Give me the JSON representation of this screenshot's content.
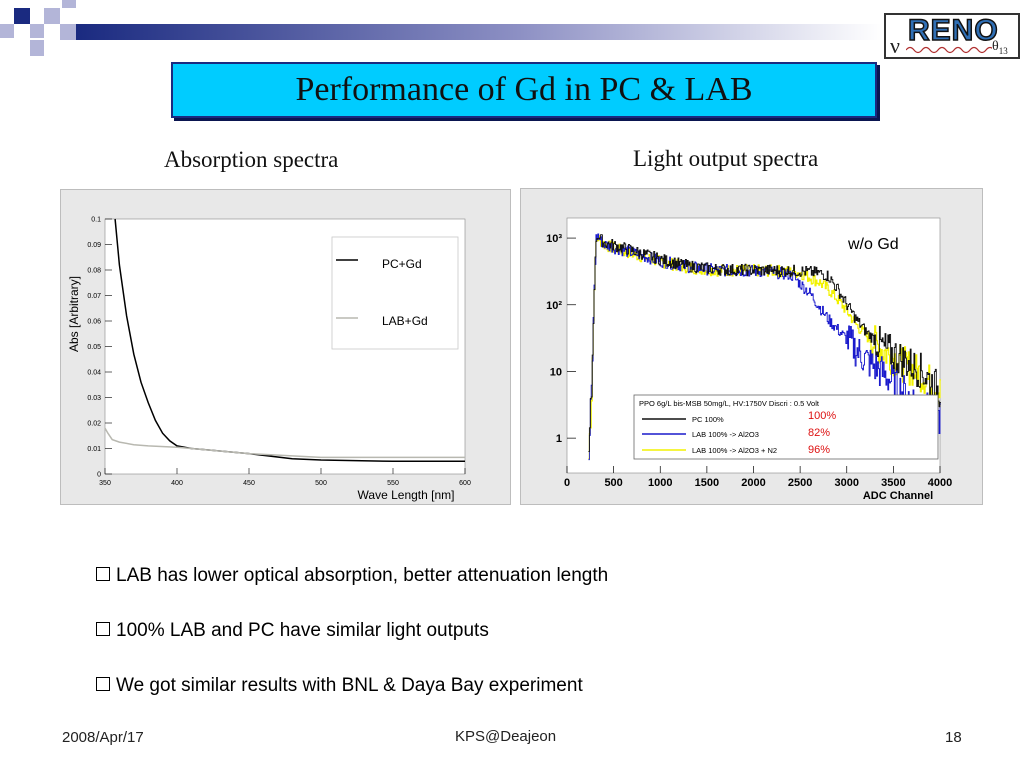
{
  "slide": {
    "title": "Performance of Gd in PC & LAB",
    "left_subtitle": "Absorption spectra",
    "right_subtitle": "Light output spectra",
    "bullets": [
      "LAB has lower optical absorption, better attenuation length",
      "100% LAB and PC have similar light outputs",
      "We got similar results with BNL & Daya Bay experiment"
    ],
    "footer": {
      "date": "2008/Apr/17",
      "center": "KPS@Deajeon",
      "page": "18"
    },
    "logo": {
      "text": "RENO",
      "nu": "ν",
      "theta": "θ",
      "theta_sub": "13"
    }
  },
  "colors": {
    "title_bg": "#00ccff",
    "title_border": "#1a2a80",
    "corner_navy": "#1a2a80",
    "corner_lavender": "#b3b5d8",
    "pc_line": "#000000",
    "lab_line": "#b8b8b0",
    "pc_hist": "#111111",
    "lab_al2o3_hist": "#1a1acc",
    "lab_al2o3_n2_hist": "#f2f200",
    "percent_text": "#dd1111"
  },
  "chart_data": [
    {
      "type": "line",
      "xlabel": "Wave Length [nm]",
      "ylabel": "Abs [Arbitrary]",
      "xlim": [
        350,
        600
      ],
      "ylim": [
        0,
        0.1
      ],
      "x_ticks": [
        "350",
        "400",
        "450",
        "500",
        "550",
        "600"
      ],
      "y_ticks": [
        "0",
        "0.01",
        "0.02",
        "0.03",
        "0.04",
        "0.05",
        "0.06",
        "0.07",
        "0.08",
        "0.09",
        "0.1"
      ],
      "grid": false,
      "legend_position": "top-right",
      "series": [
        {
          "name": "PC+Gd",
          "x": [
            357,
            360,
            365,
            370,
            375,
            380,
            385,
            390,
            395,
            400,
            410,
            420,
            450,
            480,
            500,
            550,
            600
          ],
          "y": [
            0.1,
            0.082,
            0.062,
            0.047,
            0.036,
            0.028,
            0.021,
            0.016,
            0.013,
            0.011,
            0.01,
            0.0095,
            0.008,
            0.006,
            0.0055,
            0.005,
            0.005
          ]
        },
        {
          "name": "LAB+Gd",
          "x": [
            350,
            352,
            355,
            360,
            370,
            380,
            400,
            450,
            500,
            550,
            600
          ],
          "y": [
            0.018,
            0.016,
            0.0135,
            0.0125,
            0.0115,
            0.011,
            0.0105,
            0.008,
            0.0065,
            0.0065,
            0.0065
          ]
        }
      ]
    },
    {
      "type": "line",
      "annotation": "w/o Gd",
      "xlabel": "ADC Channel",
      "ylabel": "",
      "xlim": [
        0,
        4000
      ],
      "y_scale": "log",
      "ylim": [
        0.3,
        2000
      ],
      "x_ticks": [
        "0",
        "500",
        "1000",
        "1500",
        "2000",
        "2500",
        "3000",
        "3500",
        "4000"
      ],
      "y_ticks": [
        {
          "value": 1,
          "label": "1"
        },
        {
          "value": 10,
          "label": "10"
        },
        {
          "value": 100,
          "label": "10²"
        },
        {
          "value": 1000,
          "label": "10³"
        }
      ],
      "grid": false,
      "legend_title": "PPO 6g/L bis-MSB 50mg/L, HV:1750V Discri : 0.5 Volt",
      "legend_position": "bottom-right",
      "series": [
        {
          "name": "PC  100%",
          "relative_output": "100%",
          "x": [
            230,
            260,
            290,
            310,
            330,
            360,
            400,
            500,
            700,
            1000,
            1300,
            1600,
            2000,
            2300,
            2500,
            2700,
            2800,
            2900,
            3000,
            3100,
            3200,
            3400,
            3600,
            3800,
            4000
          ],
          "y": [
            0.5,
            5,
            200,
            1000,
            1100,
            950,
            850,
            780,
            650,
            480,
            380,
            340,
            330,
            325,
            320,
            300,
            270,
            170,
            100,
            60,
            40,
            22,
            15,
            10,
            5
          ]
        },
        {
          "name": "LAB 100% -> Al2O3",
          "relative_output": "82%",
          "x": [
            230,
            260,
            290,
            310,
            330,
            360,
            400,
            500,
            700,
            1000,
            1300,
            1600,
            1800,
            2000,
            2200,
            2400,
            2600,
            2800,
            3000,
            3200,
            3400,
            3600,
            3800,
            4000
          ],
          "y": [
            0.5,
            5,
            200,
            1000,
            1100,
            900,
            800,
            720,
            600,
            450,
            370,
            330,
            325,
            320,
            310,
            280,
            150,
            60,
            30,
            15,
            9,
            5,
            3,
            2
          ]
        },
        {
          "name": "LAB 100% -> Al2O3 + N2",
          "relative_output": "96%",
          "x": [
            230,
            260,
            290,
            310,
            330,
            360,
            400,
            500,
            700,
            1000,
            1300,
            1600,
            2000,
            2300,
            2500,
            2700,
            2800,
            2900,
            3000,
            3100,
            3200,
            3400,
            3600,
            3800,
            4000
          ],
          "y": [
            0.5,
            5,
            200,
            900,
            1000,
            900,
            800,
            700,
            580,
            440,
            360,
            330,
            325,
            320,
            300,
            220,
            170,
            120,
            80,
            50,
            35,
            20,
            13,
            9,
            5
          ]
        }
      ]
    }
  ]
}
